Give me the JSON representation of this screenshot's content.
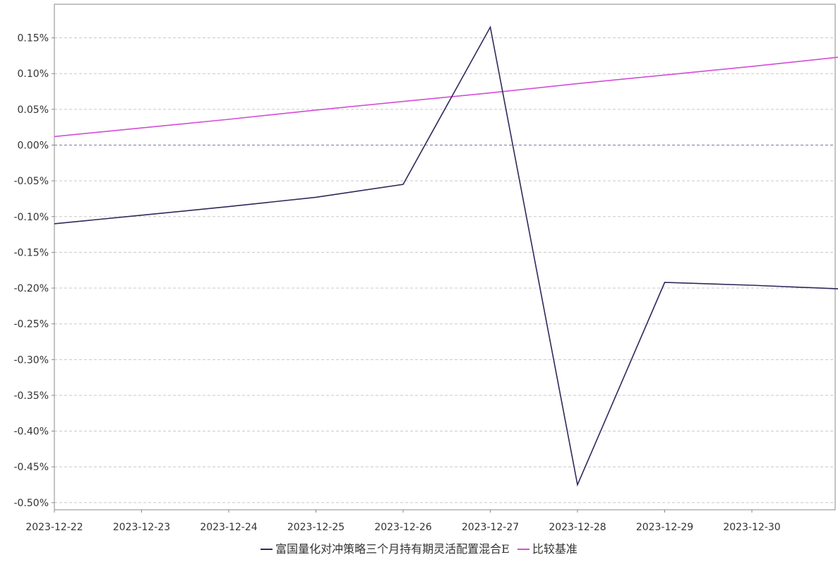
{
  "chart_data": {
    "type": "line",
    "title": "",
    "xlabel": "",
    "ylabel": "",
    "x": [
      "2023-12-22",
      "2023-12-23",
      "2023-12-24",
      "2023-12-25",
      "2023-12-26",
      "2023-12-27",
      "2023-12-28",
      "2023-12-29",
      "2023-12-30",
      "2023-12-31"
    ],
    "x_tick_labels": [
      "2023-12-22",
      "2023-12-23",
      "2023-12-24",
      "2023-12-25",
      "2023-12-26",
      "2023-12-27",
      "2023-12-28",
      "2023-12-29",
      "2023-12-30"
    ],
    "ylim": [
      -0.51,
      0.197
    ],
    "y_ticks": [
      0.15,
      0.1,
      0.05,
      0.0,
      -0.05,
      -0.1,
      -0.15,
      -0.2,
      -0.25,
      -0.3,
      -0.35,
      -0.4,
      -0.45,
      -0.5
    ],
    "y_tick_labels": [
      "0.15%",
      "0.10%",
      "0.05%",
      "0.00%",
      "-0.05%",
      "-0.10%",
      "-0.15%",
      "-0.20%",
      "-0.25%",
      "-0.30%",
      "-0.35%",
      "-0.40%",
      "-0.45%",
      "-0.50%"
    ],
    "grid": true,
    "legend_position": "bottom-center",
    "series": [
      {
        "name": "富国量化对冲策略三个月持有期灵活配置混合E",
        "color": "#2e2a5a",
        "values": [
          -0.11,
          -0.098,
          -0.086,
          -0.073,
          -0.055,
          0.165,
          -0.475,
          -0.192,
          -0.196,
          -0.201
        ]
      },
      {
        "name": "比较基准",
        "color": "#d24ed6",
        "values": [
          0.012,
          0.024,
          0.036,
          0.049,
          0.061,
          0.073,
          0.086,
          0.098,
          0.11,
          0.123
        ]
      }
    ]
  }
}
